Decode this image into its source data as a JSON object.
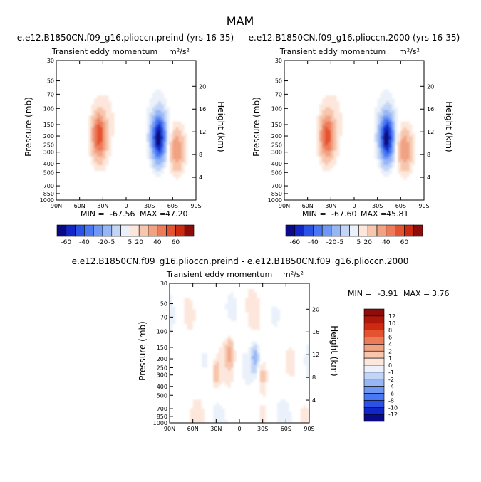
{
  "figure": {
    "title": "MAM",
    "panel_subtitle": "Transient eddy momentum",
    "units": "m²/s²"
  },
  "chart_data": [
    {
      "type": "heatmap",
      "title": "e.e12.B1850CN.f09_g16.plioccn.preind (yrs 16-35)",
      "subtitle": "Transient eddy momentum",
      "units": "m²/s²",
      "xlabel": "",
      "ylabel": "Pressure (mb)",
      "y2label": "Height (km)",
      "x_ticks": [
        "90N",
        "60N",
        "30N",
        "0",
        "30S",
        "60S",
        "90S"
      ],
      "y_ticks": [
        30,
        50,
        70,
        100,
        150,
        200,
        250,
        300,
        400,
        500,
        700,
        850,
        1000
      ],
      "y2_ticks": [
        20,
        16,
        12,
        8,
        4
      ],
      "min": -67.56,
      "max": 47.2,
      "min_label": "MIN =",
      "max_label": "MAX =",
      "extrema": [
        {
          "lat": 35,
          "p": 200,
          "value": 47.2
        },
        {
          "lat": -42,
          "p": 210,
          "value": -67.56
        },
        {
          "lat": -65,
          "p": 280,
          "value": 30
        }
      ]
    },
    {
      "type": "heatmap",
      "title": "e.e12.B1850CN.f09_g16.plioccn.2000 (yrs 16-35)",
      "subtitle": "Transient eddy momentum",
      "units": "m²/s²",
      "xlabel": "",
      "ylabel": "Pressure (mb)",
      "y2label": "Height (km)",
      "x_ticks": [
        "90N",
        "60N",
        "30N",
        "0",
        "30S",
        "60S",
        "90S"
      ],
      "y_ticks": [
        30,
        50,
        70,
        100,
        150,
        200,
        250,
        300,
        400,
        500,
        700,
        850,
        1000
      ],
      "y2_ticks": [
        20,
        16,
        12,
        8,
        4
      ],
      "min": -67.6,
      "max": 45.81,
      "min_label": "MIN =",
      "max_label": "MAX =",
      "extrema": [
        {
          "lat": 35,
          "p": 200,
          "value": 45.81
        },
        {
          "lat": -42,
          "p": 210,
          "value": -67.6
        },
        {
          "lat": -65,
          "p": 280,
          "value": 30
        }
      ]
    },
    {
      "type": "heatmap",
      "title": "e.e12.B1850CN.f09_g16.plioccn.preind - e.e12.B1850CN.f09_g16.plioccn.2000",
      "subtitle": "Transient eddy momentum",
      "units": "m²/s²",
      "xlabel": "",
      "ylabel": "Pressure (mb)",
      "y2label": "Height (km)",
      "x_ticks": [
        "90N",
        "60N",
        "30N",
        "0",
        "30S",
        "60S",
        "90S"
      ],
      "y_ticks": [
        30,
        50,
        70,
        100,
        150,
        200,
        250,
        300,
        400,
        500,
        700,
        850,
        1000
      ],
      "y2_ticks": [
        20,
        16,
        12,
        8,
        4
      ],
      "min": -3.91,
      "max": 3.76,
      "min_label": "MIN =",
      "max_label": "MAX =",
      "extrema": [
        {
          "lat": 12,
          "p": 170,
          "value": 3.76
        },
        {
          "lat": -20,
          "p": 190,
          "value": -3.91
        },
        {
          "lat": 30,
          "p": 300,
          "value": 3.0
        },
        {
          "lat": -30,
          "p": 300,
          "value": 2.5
        }
      ]
    }
  ],
  "colorbar_main": {
    "labels": [
      "-60",
      "-40",
      "-20",
      "-5",
      "5",
      "20",
      "40",
      "60"
    ],
    "colors": [
      "#0a0a86",
      "#1126c6",
      "#2b52e6",
      "#4a78f2",
      "#6f98f5",
      "#97b6f6",
      "#c3d5f7",
      "#eaf1fa",
      "#fde7dc",
      "#f7c6ad",
      "#f1a283",
      "#ec7b5a",
      "#e4532f",
      "#cd2a12",
      "#8e0c0a"
    ]
  },
  "colorbar_diff": {
    "labels": [
      "12",
      "10",
      "8",
      "6",
      "4",
      "2",
      "1",
      "0",
      "-1",
      "-2",
      "-4",
      "-6",
      "-8",
      "-10",
      "-12"
    ],
    "colors": [
      "#8e0c0a",
      "#b0170c",
      "#cd2a12",
      "#e4532f",
      "#ec7b5a",
      "#f1a283",
      "#f7c6ad",
      "#fde7dc",
      "#eaf1fa",
      "#c3d5f7",
      "#97b6f6",
      "#6f98f5",
      "#4a78f2",
      "#2b52e6",
      "#1126c6",
      "#0a0a86"
    ]
  }
}
